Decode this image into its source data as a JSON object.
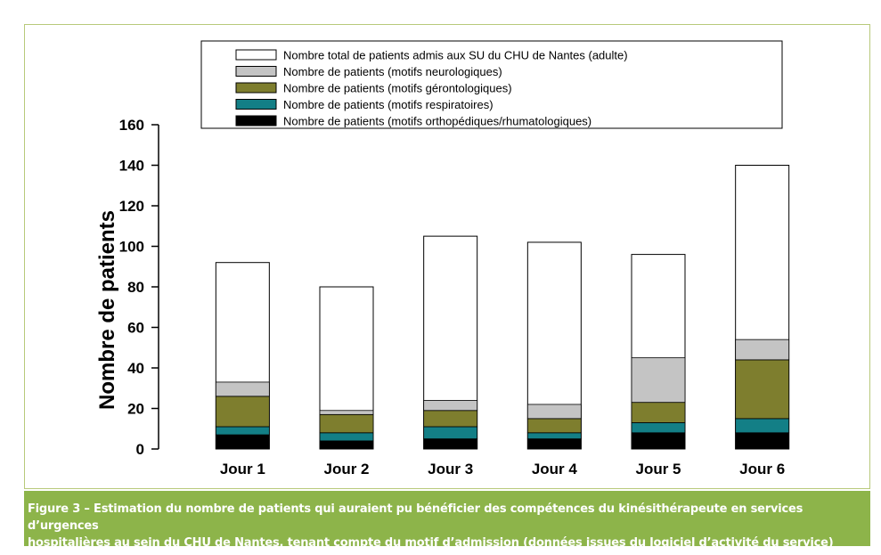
{
  "chart_data": {
    "type": "bar",
    "stacked": true,
    "categories": [
      "Jour 1",
      "Jour 2",
      "Jour 3",
      "Jour 4",
      "Jour 5",
      "Jour 6"
    ],
    "ylabel": "Nombre de patients",
    "xlabel": "",
    "ylim": [
      0,
      160
    ],
    "yticks": [
      0,
      20,
      40,
      60,
      80,
      100,
      120,
      140,
      160
    ],
    "series": [
      {
        "name": "Nombre de patients (motifs orthopédiques/rhumatologiques)",
        "color": "#000000",
        "values": [
          7,
          4,
          5,
          5,
          8,
          8
        ]
      },
      {
        "name": "Nombre de patients (motifs respiratoires)",
        "color": "#137f86",
        "values": [
          4,
          4,
          6,
          3,
          5,
          7
        ]
      },
      {
        "name": "Nombre de patients (motifs gérontologiques)",
        "color": "#7e7e2e",
        "values": [
          15,
          9,
          8,
          7,
          10,
          29
        ]
      },
      {
        "name": "Nombre de patients (motifs neurologiques)",
        "color": "#c4c4c4",
        "values": [
          7,
          2,
          5,
          7,
          22,
          10
        ]
      },
      {
        "name": "Nombre total de patients admis aux SU du CHU de Nantes (adulte)",
        "color": "#ffffff",
        "totals": [
          92,
          80,
          105,
          102,
          96,
          140
        ]
      }
    ],
    "legend_order": [
      4,
      3,
      2,
      1,
      0
    ],
    "legend_position": "top"
  },
  "caption": {
    "line1": "Figure 3 – Estimation du nombre de patients qui auraient pu bénéficier des compétences du kinésithérapeute en services d’urgences",
    "line2": "hospitalières au sein du CHU de Nantes, tenant compte du motif d’admission (données issues du logiciel d’activité du service)"
  },
  "colors": {
    "caption_bg": "#8db44a",
    "frame_border": "#b8c97a"
  }
}
